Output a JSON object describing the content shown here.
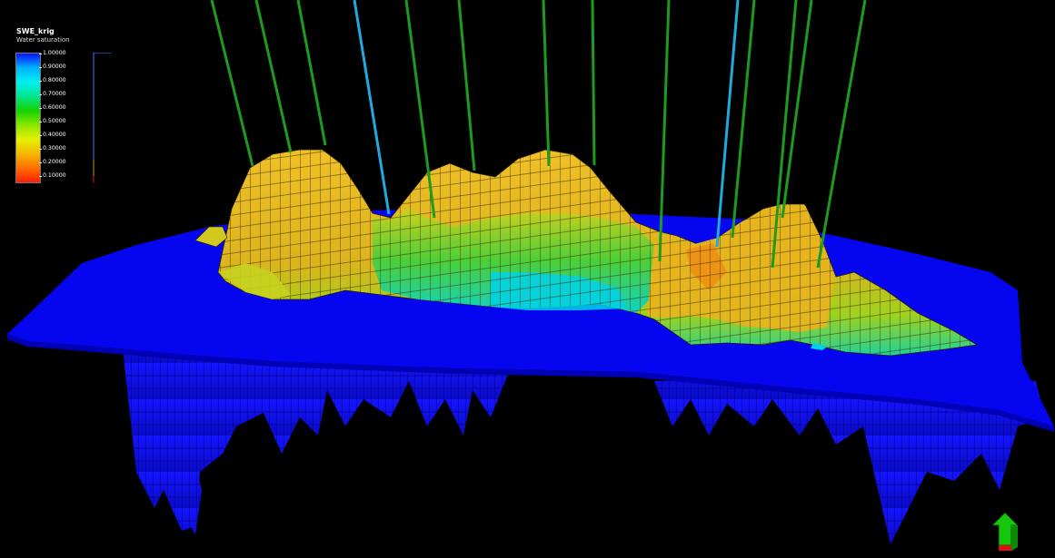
{
  "property": {
    "name": "SWE_krig",
    "description": "Water saturation"
  },
  "legend": {
    "ticks": [
      "1.00000",
      "0.90000",
      "0.80000",
      "0.70000",
      "0.60000",
      "0.50000",
      "0.40000",
      "0.30000",
      "0.20000",
      "0.10000"
    ],
    "colors": [
      "#0a10ff",
      "#00b2ff",
      "#00f0f0",
      "#00e68c",
      "#14d200",
      "#8ce600",
      "#e6f000",
      "#f5b800",
      "#ff6e00",
      "#ff1e00"
    ]
  },
  "scene": {
    "background": "#000000",
    "reservoir_color": "#0000ff",
    "surface_colors": {
      "high": "#e6b31e",
      "mid": "#b4d21e",
      "low": "#1ec878",
      "trough": "#00d2e6"
    },
    "well_colors": {
      "primary": "#1e9b1e",
      "secondary": "#1eaadc"
    }
  },
  "orientation": {
    "up_color": "#16c60c",
    "base_color": "#e01010"
  }
}
